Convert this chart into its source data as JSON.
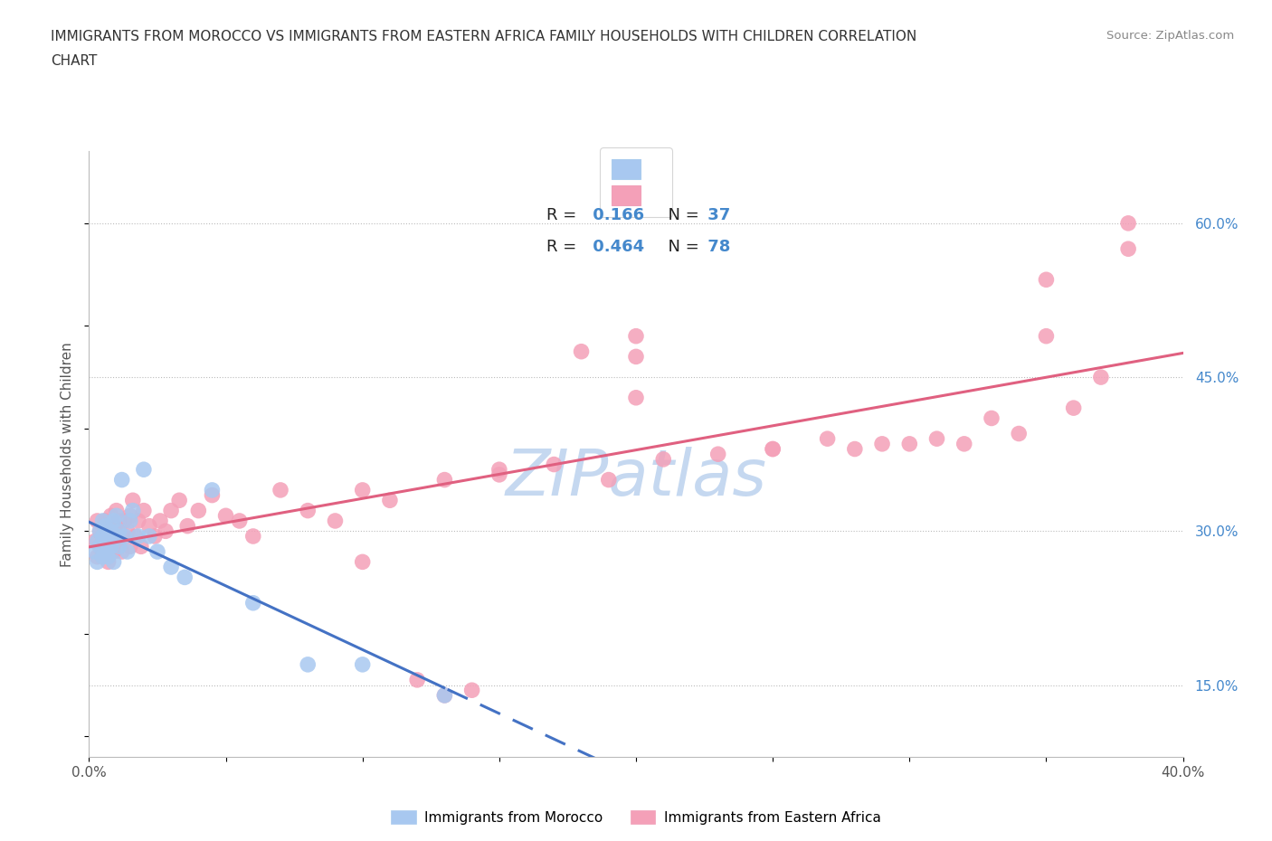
{
  "title_line1": "IMMIGRANTS FROM MOROCCO VS IMMIGRANTS FROM EASTERN AFRICA FAMILY HOUSEHOLDS WITH CHILDREN CORRELATION",
  "title_line2": "CHART",
  "source": "Source: ZipAtlas.com",
  "ylabel": "Family Households with Children",
  "xlim": [
    0.0,
    0.4
  ],
  "ylim": [
    0.08,
    0.67
  ],
  "x_ticks": [
    0.0,
    0.05,
    0.1,
    0.15,
    0.2,
    0.25,
    0.3,
    0.35,
    0.4
  ],
  "x_tick_labels": [
    "0.0%",
    "",
    "",
    "",
    "",
    "",
    "",
    "",
    "40.0%"
  ],
  "y_ticks_right": [
    0.15,
    0.3,
    0.45,
    0.6
  ],
  "y_tick_labels_right": [
    "15.0%",
    "30.0%",
    "45.0%",
    "60.0%"
  ],
  "R_morocco": 0.166,
  "N_morocco": 37,
  "R_eastern": 0.464,
  "N_eastern": 78,
  "color_morocco": "#a8c8f0",
  "color_eastern": "#f4a0b8",
  "line_color_morocco": "#4472c4",
  "line_color_eastern": "#e06080",
  "watermark": "ZIPatlas",
  "watermark_color": "#c5d8f0",
  "morocco_x": [
    0.002,
    0.003,
    0.003,
    0.004,
    0.004,
    0.005,
    0.005,
    0.005,
    0.006,
    0.006,
    0.006,
    0.007,
    0.007,
    0.008,
    0.008,
    0.009,
    0.009,
    0.01,
    0.01,
    0.011,
    0.011,
    0.012,
    0.013,
    0.014,
    0.015,
    0.016,
    0.018,
    0.02,
    0.022,
    0.025,
    0.03,
    0.035,
    0.045,
    0.06,
    0.08,
    0.1,
    0.13
  ],
  "morocco_y": [
    0.28,
    0.29,
    0.27,
    0.3,
    0.285,
    0.295,
    0.275,
    0.31,
    0.29,
    0.28,
    0.305,
    0.295,
    0.275,
    0.3,
    0.285,
    0.31,
    0.27,
    0.295,
    0.315,
    0.285,
    0.3,
    0.35,
    0.295,
    0.28,
    0.31,
    0.32,
    0.295,
    0.36,
    0.295,
    0.28,
    0.265,
    0.255,
    0.34,
    0.23,
    0.17,
    0.17,
    0.14
  ],
  "eastern_x": [
    0.002,
    0.003,
    0.003,
    0.004,
    0.004,
    0.005,
    0.005,
    0.006,
    0.006,
    0.007,
    0.007,
    0.008,
    0.008,
    0.009,
    0.009,
    0.01,
    0.01,
    0.011,
    0.011,
    0.012,
    0.012,
    0.013,
    0.014,
    0.015,
    0.015,
    0.016,
    0.017,
    0.018,
    0.019,
    0.02,
    0.022,
    0.024,
    0.026,
    0.028,
    0.03,
    0.033,
    0.036,
    0.04,
    0.045,
    0.05,
    0.055,
    0.06,
    0.07,
    0.08,
    0.09,
    0.1,
    0.11,
    0.13,
    0.15,
    0.17,
    0.19,
    0.21,
    0.23,
    0.25,
    0.27,
    0.29,
    0.31,
    0.33,
    0.34,
    0.36,
    0.37,
    0.35,
    0.32,
    0.3,
    0.28,
    0.25,
    0.2,
    0.18,
    0.15,
    0.35,
    0.38,
    0.38,
    0.2,
    0.2,
    0.14,
    0.13,
    0.12,
    0.1
  ],
  "eastern_y": [
    0.29,
    0.275,
    0.31,
    0.285,
    0.3,
    0.295,
    0.28,
    0.31,
    0.285,
    0.3,
    0.27,
    0.295,
    0.315,
    0.28,
    0.305,
    0.29,
    0.32,
    0.285,
    0.31,
    0.295,
    0.28,
    0.31,
    0.3,
    0.315,
    0.285,
    0.33,
    0.295,
    0.31,
    0.285,
    0.32,
    0.305,
    0.295,
    0.31,
    0.3,
    0.32,
    0.33,
    0.305,
    0.32,
    0.335,
    0.315,
    0.31,
    0.295,
    0.34,
    0.32,
    0.31,
    0.34,
    0.33,
    0.35,
    0.36,
    0.365,
    0.35,
    0.37,
    0.375,
    0.38,
    0.39,
    0.385,
    0.39,
    0.41,
    0.395,
    0.42,
    0.45,
    0.49,
    0.385,
    0.385,
    0.38,
    0.38,
    0.43,
    0.475,
    0.355,
    0.545,
    0.575,
    0.6,
    0.49,
    0.47,
    0.145,
    0.14,
    0.155,
    0.27
  ]
}
